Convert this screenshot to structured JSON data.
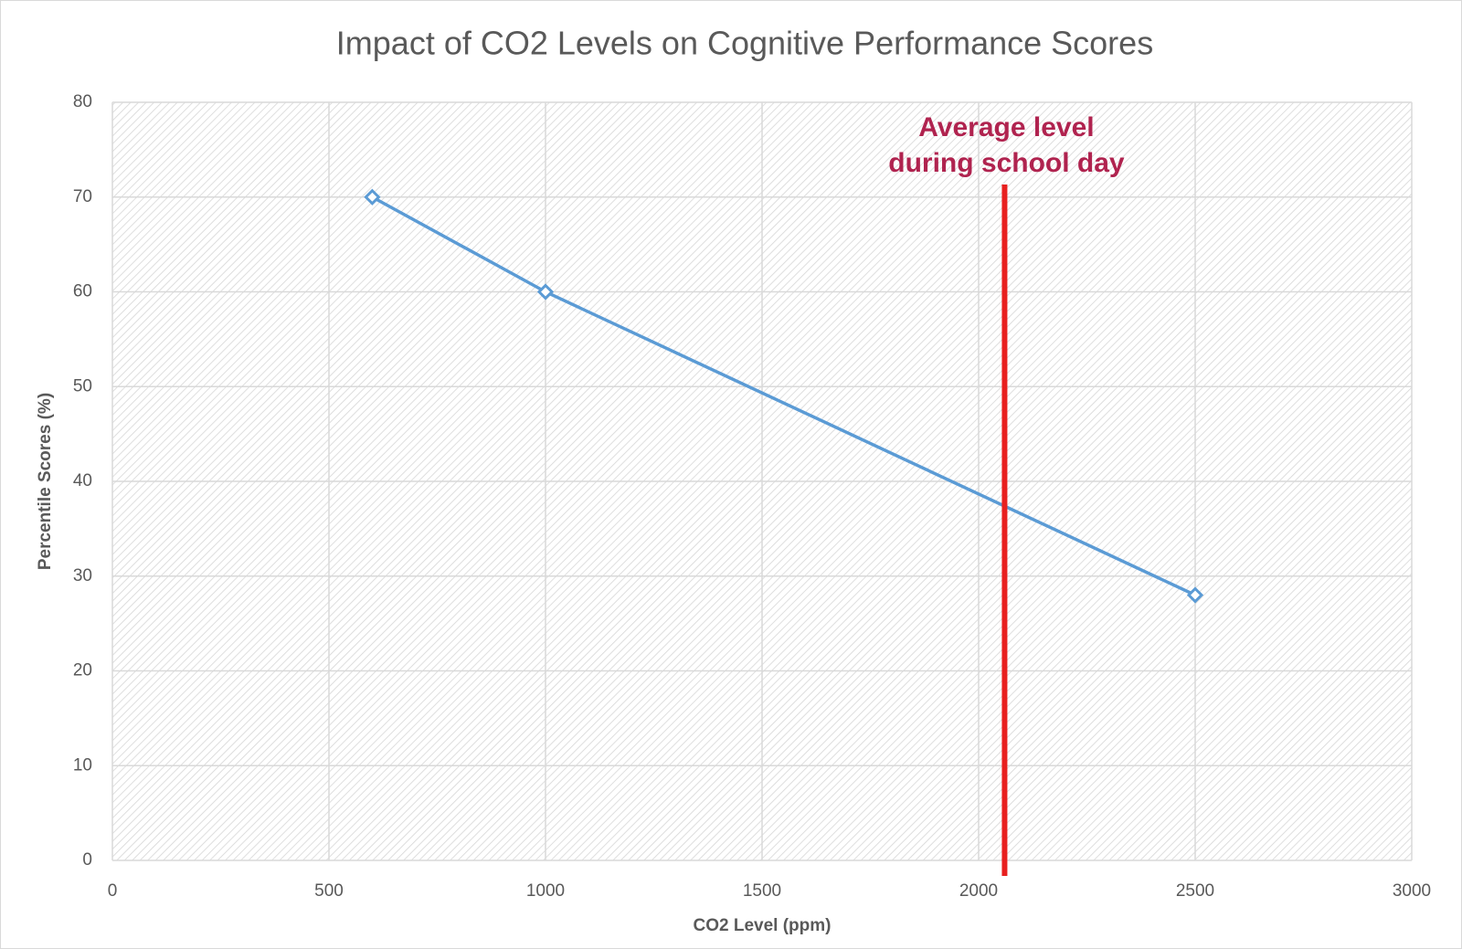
{
  "chart_data": {
    "type": "line",
    "title": "Impact of CO2 Levels on Cognitive Performance Scores",
    "x_label": "CO2 Level (ppm)",
    "y_label": "Percentile Scores (%)",
    "x": [
      600,
      1000,
      2500
    ],
    "values": [
      70,
      60,
      28
    ],
    "color": "#5b9bd5",
    "marker": "diamond",
    "xlim": [
      0,
      3000
    ],
    "xticks": [
      0,
      500,
      1000,
      1500,
      2000,
      2500,
      3000
    ],
    "ylim": [
      0,
      80
    ],
    "yticks": [
      0,
      10,
      20,
      30,
      40,
      50,
      60,
      70,
      80
    ],
    "grid": true,
    "reference_line": {
      "x": 2060,
      "color": "#e8201f",
      "label": [
        "Average level",
        "during school day"
      ],
      "label_color": "#b0234f"
    }
  }
}
